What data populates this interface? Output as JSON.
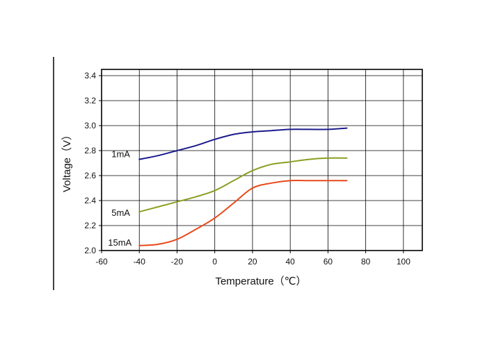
{
  "chart_data": {
    "type": "line",
    "xlabel": "Temperature（℃）",
    "ylabel": "Voltage（V）",
    "xlim": [
      -60,
      110
    ],
    "ylim": [
      2.0,
      3.45
    ],
    "x_ticks": [
      -60,
      -40,
      -20,
      0,
      20,
      40,
      60,
      80,
      100
    ],
    "y_ticks": [
      2.0,
      2.2,
      2.4,
      2.6,
      2.8,
      3.0,
      3.2,
      3.4
    ],
    "grid": true,
    "series": [
      {
        "name": "1mA",
        "color": "#1a1a8c",
        "x": [
          -40,
          -30,
          -20,
          -10,
          0,
          10,
          20,
          30,
          40,
          50,
          60,
          70
        ],
        "y": [
          2.73,
          2.76,
          2.8,
          2.84,
          2.89,
          2.93,
          2.95,
          2.96,
          2.97,
          2.97,
          2.97,
          2.98
        ]
      },
      {
        "name": "5mA",
        "color": "#88a020",
        "x": [
          -40,
          -30,
          -20,
          -10,
          0,
          10,
          20,
          30,
          40,
          50,
          60,
          70
        ],
        "y": [
          2.31,
          2.35,
          2.39,
          2.43,
          2.48,
          2.56,
          2.64,
          2.69,
          2.71,
          2.73,
          2.74,
          2.74
        ]
      },
      {
        "name": "15mA",
        "color": "#e84818",
        "x": [
          -40,
          -30,
          -20,
          -10,
          0,
          10,
          20,
          30,
          40,
          50,
          60,
          70
        ],
        "y": [
          2.04,
          2.05,
          2.09,
          2.17,
          2.26,
          2.38,
          2.5,
          2.54,
          2.56,
          2.56,
          2.56,
          2.56
        ]
      }
    ]
  }
}
